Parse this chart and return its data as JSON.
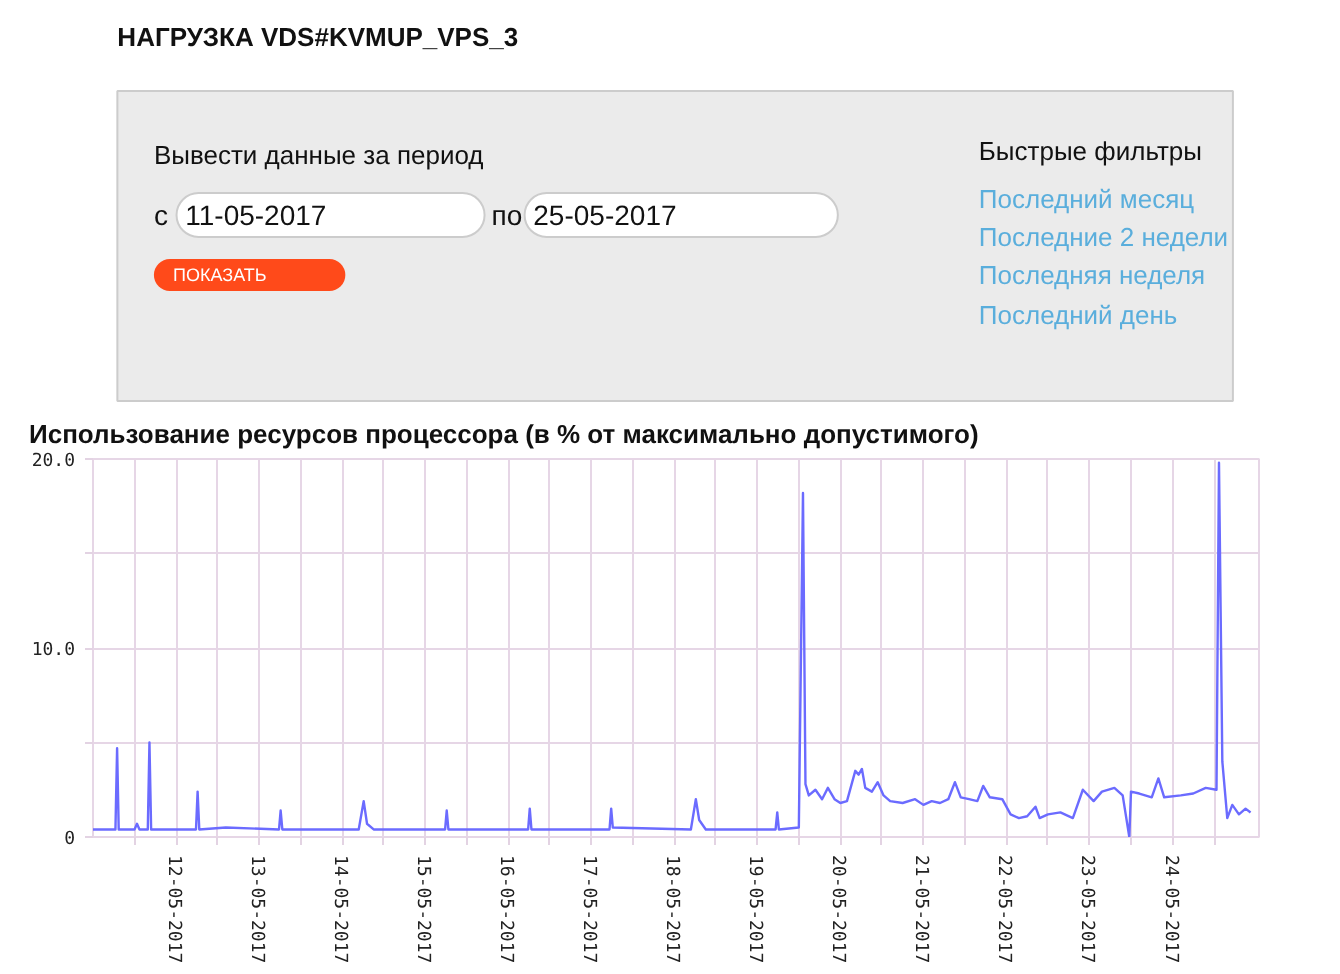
{
  "chart_data": [
    {
      "type": "other",
      "title": "НАГРУЗКА VDS#KVMUP_VPS_3",
      "annotations": [
        "Вывести данные за период",
        "с",
        "11-05-2017",
        "по",
        "25-05-2017",
        "ПОКАЗАТЬ",
        "Быстрые фильтры",
        "Последний месяц",
        "Последние 2 недели",
        "Последняя неделя",
        "Последний день"
      ]
    },
    {
      "type": "line",
      "title": "Использование ресурсов процессора (в % от максимально допустимого)",
      "x": [
        "2017-05-11T00:00",
        "2017-05-11T06:29",
        "2017-05-11T06:58",
        "2017-05-11T07:26",
        "2017-05-11T12:00",
        "2017-05-11T12:43",
        "2017-05-11T13:26",
        "2017-05-11T15:50",
        "2017-05-11T16:19",
        "2017-05-11T16:48",
        "2017-05-12T05:46",
        "2017-05-12T06:14",
        "2017-05-12T06:43",
        "2017-05-12T14:24",
        "2017-05-13T05:46",
        "2017-05-13T06:14",
        "2017-05-13T06:43",
        "2017-05-14T04:48",
        "2017-05-14T06:14",
        "2017-05-14T07:12",
        "2017-05-14T09:07",
        "2017-05-15T05:46",
        "2017-05-15T06:14",
        "2017-05-15T06:43",
        "2017-05-16T05:46",
        "2017-05-16T06:14",
        "2017-05-16T06:43",
        "2017-05-17T05:17",
        "2017-05-17T05:46",
        "2017-05-17T06:14",
        "2017-05-18T04:48",
        "2017-05-18T06:14",
        "2017-05-18T07:12",
        "2017-05-18T09:07",
        "2017-05-19T05:17",
        "2017-05-19T05:46",
        "2017-05-19T06:14",
        "2017-05-19T12:00",
        "2017-05-19T13:12",
        "2017-05-19T13:55",
        "2017-05-19T14:53",
        "2017-05-19T16:48",
        "2017-05-19T18:43",
        "2017-05-19T20:24",
        "2017-05-19T22:19",
        "2017-05-20T00:00",
        "2017-05-20T01:55",
        "2017-05-20T04:19",
        "2017-05-20T05:17",
        "2017-05-20T06:14",
        "2017-05-20T07:12",
        "2017-05-20T09:07",
        "2017-05-20T10:48",
        "2017-05-20T12:29",
        "2017-05-20T14:24",
        "2017-05-20T18:00",
        "2017-05-20T21:36",
        "2017-05-21T00:00",
        "2017-05-21T02:24",
        "2017-05-21T04:48",
        "2017-05-21T07:12",
        "2017-05-21T09:07",
        "2017-05-21T10:48",
        "2017-05-21T13:12",
        "2017-05-21T15:36",
        "2017-05-21T17:17",
        "2017-05-21T19:12",
        "2017-05-21T22:48",
        "2017-05-22T01:12",
        "2017-05-22T03:36",
        "2017-05-22T06:00",
        "2017-05-22T08:24",
        "2017-05-22T09:36",
        "2017-05-22T12:00",
        "2017-05-22T15:36",
        "2017-05-22T19:12",
        "2017-05-22T22:05",
        "2017-05-23T01:12",
        "2017-05-23T03:36",
        "2017-05-23T07:12",
        "2017-05-23T09:36",
        "2017-05-23T11:31",
        "2017-05-23T12:00",
        "2017-05-23T14:24",
        "2017-05-23T18:00",
        "2017-05-23T19:55",
        "2017-05-23T21:36",
        "2017-05-24T02:24",
        "2017-05-24T06:00",
        "2017-05-24T09:36",
        "2017-05-24T12:43",
        "2017-05-24T13:26",
        "2017-05-24T14:24",
        "2017-05-24T15:50",
        "2017-05-24T17:17",
        "2017-05-24T19:12",
        "2017-05-24T21:07",
        "2017-05-24T22:34"
      ],
      "values": [
        0.4,
        0.4,
        4.7,
        0.4,
        0.4,
        0.7,
        0.4,
        0.4,
        5.0,
        0.4,
        0.4,
        2.4,
        0.4,
        0.5,
        0.4,
        1.4,
        0.4,
        0.4,
        1.9,
        0.7,
        0.4,
        0.4,
        1.4,
        0.4,
        0.4,
        1.5,
        0.4,
        0.4,
        1.5,
        0.5,
        0.4,
        2.0,
        0.9,
        0.4,
        0.4,
        1.3,
        0.4,
        0.5,
        18.2,
        2.8,
        2.2,
        2.5,
        2.0,
        2.6,
        2.0,
        1.8,
        1.9,
        3.5,
        3.3,
        3.6,
        2.6,
        2.4,
        2.9,
        2.2,
        1.9,
        1.8,
        2.0,
        1.7,
        1.9,
        1.8,
        2.0,
        2.9,
        2.1,
        2.0,
        1.9,
        2.7,
        2.1,
        2.0,
        1.2,
        1.0,
        1.1,
        1.6,
        1.0,
        1.2,
        1.3,
        1.0,
        2.5,
        1.9,
        2.4,
        2.6,
        2.2,
        0.0,
        2.4,
        2.3,
        2.1,
        3.1,
        2.1,
        2.2,
        2.3,
        2.6,
        2.5,
        19.8,
        4.0,
        1.0,
        1.7,
        1.2,
        1.5,
        1.3
      ],
      "color": "#6b6bff",
      "xlim": [
        "2017-05-11T00:00",
        "2017-05-25T01:00"
      ],
      "xticks": [
        {
          "value": "2017-05-11T12:00",
          "label": null
        },
        {
          "value": "2017-05-12",
          "label": "12-05-2017"
        },
        {
          "value": "2017-05-12T12:00",
          "label": null
        },
        {
          "value": "2017-05-13",
          "label": "13-05-2017"
        },
        {
          "value": "2017-05-13T12:00",
          "label": null
        },
        {
          "value": "2017-05-14",
          "label": "14-05-2017"
        },
        {
          "value": "2017-05-14T12:00",
          "label": null
        },
        {
          "value": "2017-05-15",
          "label": "15-05-2017"
        },
        {
          "value": "2017-05-15T12:00",
          "label": null
        },
        {
          "value": "2017-05-16",
          "label": "16-05-2017"
        },
        {
          "value": "2017-05-16T12:00",
          "label": null
        },
        {
          "value": "2017-05-17",
          "label": "17-05-2017"
        },
        {
          "value": "2017-05-17T12:00",
          "label": null
        },
        {
          "value": "2017-05-18",
          "label": "18-05-2017"
        },
        {
          "value": "2017-05-18T12:00",
          "label": null
        },
        {
          "value": "2017-05-19",
          "label": "19-05-2017"
        },
        {
          "value": "2017-05-19T12:00",
          "label": null
        },
        {
          "value": "2017-05-20",
          "label": "20-05-2017"
        },
        {
          "value": "2017-05-20T12:00",
          "label": null
        },
        {
          "value": "2017-05-21",
          "label": "21-05-2017"
        },
        {
          "value": "2017-05-21T12:00",
          "label": null
        },
        {
          "value": "2017-05-22",
          "label": "22-05-2017"
        },
        {
          "value": "2017-05-22T12:00",
          "label": null
        },
        {
          "value": "2017-05-23",
          "label": "23-05-2017"
        },
        {
          "value": "2017-05-23T12:00",
          "label": null
        },
        {
          "value": "2017-05-24",
          "label": "24-05-2017"
        },
        {
          "value": "2017-05-24T12:00",
          "label": null
        }
      ],
      "ylim": [
        0,
        20
      ],
      "yticks": [
        {
          "value": 0,
          "label": "0"
        },
        {
          "value": 5,
          "label": null
        },
        {
          "value": 10,
          "label": "10.0"
        },
        {
          "value": 15,
          "label": null
        },
        {
          "value": 20,
          "label": "20.0"
        }
      ],
      "grid": true
    }
  ]
}
